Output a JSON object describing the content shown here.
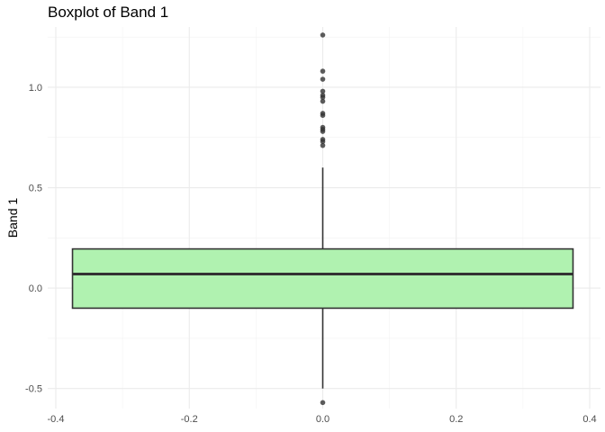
{
  "chart_data": {
    "type": "boxplot",
    "title": "Boxplot of Band 1",
    "xlabel": "",
    "ylabel": "Band 1",
    "xlim": [
      -0.4,
      0.4
    ],
    "ylim": [
      -0.6,
      1.3
    ],
    "x_ticks": [
      -0.4,
      -0.2,
      0.0,
      0.2,
      0.4
    ],
    "x_tick_labels": [
      "-0.4",
      "-0.2",
      "0.0",
      "0.2",
      "0.4"
    ],
    "y_ticks": [
      -0.5,
      0.0,
      0.5,
      1.0
    ],
    "y_tick_labels": [
      "-0.5",
      "0.0",
      "0.5",
      "1.0"
    ],
    "grid": true,
    "box": {
      "x_center": 0.0,
      "x_halfwidth": 0.375,
      "q1": -0.1,
      "median": 0.07,
      "q3": 0.195,
      "whisker_low": -0.5,
      "whisker_high": 0.6,
      "fill": "#b0f2b0",
      "stroke": "#333333"
    },
    "outliers": [
      1.26,
      1.08,
      1.04,
      0.98,
      0.96,
      0.95,
      0.93,
      0.87,
      0.86,
      0.8,
      0.79,
      0.78,
      0.74,
      0.73,
      0.71,
      -0.57
    ]
  }
}
